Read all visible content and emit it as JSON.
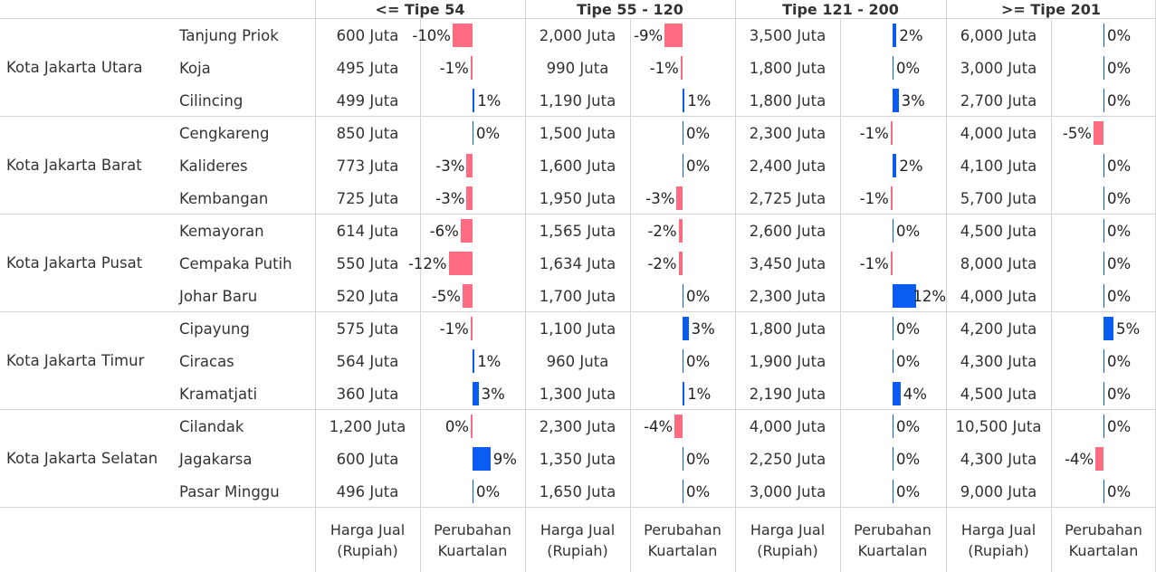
{
  "colors": {
    "negative": "#ff6b81",
    "positive": "#0b5cf0"
  },
  "groups": [
    "<= Tipe 54",
    "Tipe 55 - 120",
    "Tipe 121 - 200",
    ">= Tipe 201"
  ],
  "footer": {
    "price_label": "Harga Jual\n(Rupiah)",
    "change_label": "Perubahan\nKuartalan"
  },
  "regions": [
    {
      "name": "Kota Jakarta Utara",
      "districts": [
        {
          "name": "Tanjung Priok",
          "prices": [
            "600 Juta",
            "2,000 Juta",
            "3,500 Juta",
            "6,000 Juta"
          ],
          "changes": [
            -10,
            -9,
            2,
            0
          ],
          "labels": [
            "-10%",
            "-9%",
            "2%",
            "0%"
          ]
        },
        {
          "name": "Koja",
          "prices": [
            "495 Juta",
            "990 Juta",
            "1,800 Juta",
            "3,000 Juta"
          ],
          "changes": [
            -1,
            -1,
            0,
            0
          ],
          "labels": [
            "-1%",
            "-1%",
            "0%",
            "0%"
          ]
        },
        {
          "name": "Cilincing",
          "prices": [
            "499 Juta",
            "1,190 Juta",
            "1,800 Juta",
            "2,700 Juta"
          ],
          "changes": [
            1,
            1,
            3,
            0
          ],
          "labels": [
            "1%",
            "1%",
            "3%",
            "0%"
          ]
        }
      ]
    },
    {
      "name": "Kota Jakarta Barat",
      "districts": [
        {
          "name": "Cengkareng",
          "prices": [
            "850 Juta",
            "1,500 Juta",
            "2,300 Juta",
            "4,000 Juta"
          ],
          "changes": [
            0,
            0,
            -1,
            -5
          ],
          "labels": [
            "0%",
            "0%",
            "-1%",
            "-5%"
          ]
        },
        {
          "name": "Kalideres",
          "prices": [
            "773 Juta",
            "1,600 Juta",
            "2,400 Juta",
            "4,100 Juta"
          ],
          "changes": [
            -3,
            0,
            2,
            0
          ],
          "labels": [
            "-3%",
            "0%",
            "2%",
            "0%"
          ]
        },
        {
          "name": "Kembangan",
          "prices": [
            "725 Juta",
            "1,950 Juta",
            "2,725 Juta",
            "5,700 Juta"
          ],
          "changes": [
            -3,
            -3,
            -1,
            0
          ],
          "labels": [
            "-3%",
            "-3%",
            "-1%",
            "0%"
          ]
        }
      ]
    },
    {
      "name": "Kota Jakarta Pusat",
      "districts": [
        {
          "name": "Kemayoran",
          "prices": [
            "614 Juta",
            "1,565 Juta",
            "2,600 Juta",
            "4,500 Juta"
          ],
          "changes": [
            -6,
            -2,
            0,
            0
          ],
          "labels": [
            "-6%",
            "-2%",
            "0%",
            "0%"
          ]
        },
        {
          "name": "Cempaka Putih",
          "prices": [
            "550 Juta",
            "1,634 Juta",
            "3,450 Juta",
            "8,000 Juta"
          ],
          "changes": [
            -12,
            -2,
            -1,
            0
          ],
          "labels": [
            "-12%",
            "-2%",
            "-1%",
            "0%"
          ]
        },
        {
          "name": "Johar Baru",
          "prices": [
            "520 Juta",
            "1,700 Juta",
            "2,300 Juta",
            "4,000 Juta"
          ],
          "changes": [
            -5,
            0,
            12,
            0
          ],
          "labels": [
            "-5%",
            "0%",
            "12%",
            "0%"
          ]
        }
      ]
    },
    {
      "name": "Kota Jakarta Timur",
      "districts": [
        {
          "name": "Cipayung",
          "prices": [
            "575 Juta",
            "1,100 Juta",
            "1,800 Juta",
            "4,200 Juta"
          ],
          "changes": [
            -1,
            3,
            0,
            5
          ],
          "labels": [
            "-1%",
            "3%",
            "0%",
            "5%"
          ]
        },
        {
          "name": "Ciracas",
          "prices": [
            "564 Juta",
            "960 Juta",
            "1,900 Juta",
            "4,300 Juta"
          ],
          "changes": [
            1,
            0,
            0,
            0
          ],
          "labels": [
            "1%",
            "0%",
            "0%",
            "0%"
          ]
        },
        {
          "name": "Kramatjati",
          "prices": [
            "360 Juta",
            "1,300 Juta",
            "2,190 Juta",
            "4,500 Juta"
          ],
          "changes": [
            3,
            1,
            4,
            0
          ],
          "labels": [
            "3%",
            "1%",
            "4%",
            "0%"
          ]
        }
      ]
    },
    {
      "name": "Kota Jakarta Selatan",
      "districts": [
        {
          "name": "Cilandak",
          "prices": [
            "1,200 Juta",
            "2,300 Juta",
            "4,000 Juta",
            "10,500 Juta"
          ],
          "changes": [
            -0.2,
            -4,
            0,
            0
          ],
          "labels": [
            "0%",
            "-4%",
            "0%",
            "0%"
          ]
        },
        {
          "name": "Jagakarsa",
          "prices": [
            "600 Juta",
            "1,350 Juta",
            "2,250 Juta",
            "4,300 Juta"
          ],
          "changes": [
            9,
            0,
            0,
            -4
          ],
          "labels": [
            "9%",
            "0%",
            "0%",
            "-4%"
          ]
        },
        {
          "name": "Pasar Minggu",
          "prices": [
            "496 Juta",
            "1,650 Juta",
            "3,000 Juta",
            "9,000 Juta"
          ],
          "changes": [
            0,
            0,
            0,
            0
          ],
          "labels": [
            "0%",
            "0%",
            "0%",
            "0%"
          ]
        }
      ]
    }
  ]
}
